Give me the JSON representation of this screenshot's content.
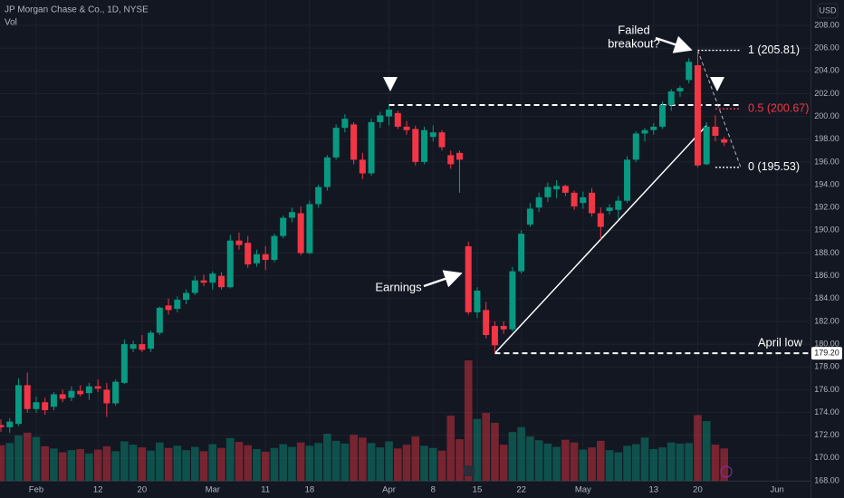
{
  "header": {
    "title": "JP Morgan Chase & Co., 1D, NYSE",
    "volume_label": "Vol",
    "currency": "USD"
  },
  "chart_data": {
    "type": "candlestick",
    "categories": [
      null,
      null,
      null,
      null,
      "Feb",
      null,
      null,
      null,
      null,
      null,
      null,
      "12",
      null,
      null,
      null,
      null,
      "20",
      null,
      null,
      null,
      null,
      null,
      null,
      null,
      "Mar",
      null,
      null,
      null,
      null,
      null,
      "11",
      null,
      null,
      null,
      null,
      "18",
      null,
      null,
      null,
      null,
      null,
      null,
      null,
      null,
      "Apr",
      null,
      null,
      null,
      null,
      "8",
      null,
      null,
      null,
      null,
      "15",
      null,
      null,
      null,
      null,
      "22",
      null,
      null,
      null,
      null,
      null,
      null,
      "May",
      null,
      null,
      null,
      null,
      null,
      null,
      null,
      "13",
      null,
      null,
      null,
      null,
      "20",
      null,
      null,
      null,
      null,
      null,
      null,
      null,
      null,
      "Jun"
    ],
    "open": [
      172.9,
      172.7,
      173.0,
      176.4,
      174.3,
      174.9,
      174.5,
      175.6,
      175.3,
      175.9,
      175.7,
      176.3,
      176.0,
      174.8,
      176.6,
      179.6,
      180.0,
      179.6,
      181.0,
      183.4,
      183.1,
      183.9,
      184.5,
      185.6,
      185.4,
      186.0,
      185.0,
      189.1,
      188.9,
      187.1,
      187.9,
      187.4,
      189.5,
      191.1,
      191.5,
      188.0,
      192.3,
      193.8,
      196.4,
      199.0,
      199.3,
      196.2,
      195.0,
      199.5,
      200.0,
      200.3,
      199.1,
      198.9,
      196.0,
      198.2,
      198.6,
      196.6,
      196.8,
      188.6,
      182.8,
      183.0,
      181.6,
      181.6,
      181.3,
      186.4,
      190.5,
      192.0,
      192.9,
      193.6,
      193.9,
      193.3,
      192.4,
      193.3,
      191.5,
      191.7,
      191.8,
      192.6,
      196.2,
      198.5,
      198.8,
      199.1,
      201.0,
      202.2,
      203.2,
      204.5,
      195.8,
      199.1,
      198.0,
      null,
      null,
      null,
      null,
      null,
      null
    ],
    "high": [
      173.4,
      173.5,
      177.0,
      177.5,
      175.4,
      175.3,
      175.8,
      176.0,
      176.3,
      176.4,
      176.6,
      176.9,
      176.6,
      176.9,
      180.4,
      180.3,
      180.8,
      181.2,
      183.3,
      184.0,
      184.2,
      184.8,
      186.0,
      186.1,
      186.4,
      186.3,
      189.6,
      189.8,
      189.5,
      188.3,
      188.6,
      189.7,
      191.3,
      192.0,
      192.1,
      192.6,
      194.0,
      196.6,
      199.3,
      200.2,
      199.5,
      196.8,
      199.8,
      200.4,
      201.0,
      200.5,
      199.6,
      199.2,
      199.1,
      199.2,
      198.8,
      197.0,
      197.0,
      189.0,
      185.0,
      183.7,
      182.0,
      182.0,
      186.8,
      190.0,
      192.4,
      193.3,
      194.2,
      194.4,
      194.0,
      193.5,
      193.4,
      193.7,
      192.0,
      192.3,
      193.0,
      196.5,
      198.7,
      199.0,
      199.4,
      201.3,
      202.4,
      202.7,
      205.1,
      205.81,
      199.5,
      200.1,
      198.2,
      null,
      null,
      null,
      null,
      null,
      null
    ],
    "low": [
      172.3,
      172.2,
      172.8,
      174.0,
      174.0,
      173.8,
      174.2,
      174.9,
      175.0,
      175.4,
      175.1,
      175.8,
      173.6,
      174.6,
      176.5,
      179.3,
      179.3,
      179.3,
      180.8,
      182.6,
      182.8,
      183.5,
      184.3,
      185.1,
      184.8,
      184.8,
      184.9,
      188.3,
      186.7,
      186.8,
      186.5,
      187.2,
      189.3,
      190.7,
      187.8,
      187.9,
      192.0,
      193.5,
      196.2,
      198.6,
      195.8,
      194.5,
      194.8,
      199.0,
      199.2,
      198.9,
      198.4,
      195.7,
      195.8,
      197.8,
      197.0,
      195.4,
      193.3,
      182.6,
      182.3,
      180.5,
      179.2,
      180.9,
      181.1,
      186.2,
      190.3,
      191.6,
      192.5,
      192.8,
      193.0,
      191.8,
      191.9,
      191.2,
      189.2,
      191.4,
      191.0,
      192.4,
      196.0,
      197.8,
      198.4,
      198.9,
      200.5,
      201.7,
      202.9,
      195.53,
      195.7,
      197.8,
      197.4,
      null,
      null,
      null,
      null,
      null,
      null
    ],
    "close": [
      172.7,
      173.2,
      176.4,
      174.3,
      174.9,
      174.2,
      175.6,
      175.2,
      175.9,
      175.6,
      176.3,
      176.1,
      174.8,
      176.7,
      180.0,
      180.0,
      179.5,
      181.0,
      183.2,
      183.0,
      183.9,
      184.5,
      185.6,
      185.4,
      186.2,
      185.0,
      189.1,
      188.7,
      187.0,
      187.9,
      187.4,
      189.5,
      191.1,
      191.6,
      188.0,
      192.3,
      193.8,
      196.4,
      199.0,
      199.8,
      196.2,
      195.0,
      199.5,
      200.1,
      200.6,
      199.1,
      198.8,
      196.0,
      198.8,
      198.6,
      197.3,
      195.8,
      196.2,
      182.8,
      184.7,
      180.8,
      179.9,
      181.3,
      186.4,
      189.7,
      191.9,
      192.9,
      193.8,
      193.9,
      193.3,
      192.1,
      192.9,
      191.5,
      190.3,
      192.0,
      192.6,
      196.2,
      198.5,
      198.8,
      199.1,
      201.0,
      202.2,
      202.5,
      204.8,
      195.7,
      199.1,
      198.3,
      197.7,
      null,
      null,
      null,
      null,
      null,
      null
    ],
    "volume": [
      6.5,
      6.9,
      8.3,
      8.8,
      8.0,
      6.3,
      5.9,
      5.2,
      5.6,
      5.8,
      5.0,
      5.7,
      6.3,
      5.4,
      7.2,
      6.6,
      6.1,
      5.5,
      7.0,
      6.0,
      6.4,
      5.6,
      6.2,
      5.4,
      6.7,
      6.0,
      7.8,
      7.1,
      6.5,
      5.8,
      5.3,
      6.0,
      6.7,
      6.2,
      7.0,
      6.4,
      6.9,
      8.6,
      7.3,
      6.8,
      8.4,
      7.9,
      6.9,
      6.1,
      7.2,
      5.9,
      6.6,
      8.1,
      6.4,
      6.0,
      5.5,
      11.9,
      7.6,
      22.0,
      11.3,
      12.4,
      10.6,
      6.6,
      8.9,
      9.8,
      8.1,
      7.4,
      6.8,
      6.2,
      7.5,
      7.0,
      5.7,
      6.1,
      7.3,
      5.6,
      5.2,
      6.4,
      6.7,
      7.9,
      5.8,
      6.1,
      7.0,
      6.8,
      6.9,
      12.0,
      10.9,
      6.6,
      5.9,
      null,
      null,
      null,
      null,
      null,
      null
    ],
    "up_color": "#089981",
    "down_color": "#f23645",
    "ylim": [
      168,
      208
    ],
    "yticks": [
      {
        "value": 168,
        "label": "168.00"
      },
      {
        "value": 170,
        "label": "170.00"
      },
      {
        "value": 172,
        "label": "172.00"
      },
      {
        "value": 174,
        "label": "174.00"
      },
      {
        "value": 176,
        "label": "176.00"
      },
      {
        "value": 178,
        "label": "178.00"
      },
      {
        "value": 180,
        "label": "180.00"
      },
      {
        "value": 182,
        "label": "182.00"
      },
      {
        "value": 184,
        "label": "184.00"
      },
      {
        "value": 186,
        "label": "186.00"
      },
      {
        "value": 188,
        "label": "188.00"
      },
      {
        "value": 190,
        "label": "190.00"
      },
      {
        "value": 192,
        "label": "192.00"
      },
      {
        "value": 194,
        "label": "194.00"
      },
      {
        "value": 196,
        "label": "196.00"
      },
      {
        "value": 198,
        "label": "198.00"
      },
      {
        "value": 200,
        "label": "200.00"
      },
      {
        "value": 202,
        "label": "202.00"
      },
      {
        "value": 204,
        "label": "204.00"
      },
      {
        "value": 206,
        "label": "206.00"
      },
      {
        "value": 208,
        "label": "208.00"
      }
    ],
    "grid": true,
    "resistance": 201.0,
    "support": {
      "value": 179.2,
      "label": "April low",
      "price_label": "179.20"
    },
    "trendline": [
      179.2,
      199.2
    ],
    "fib": [
      {
        "value": 205.81,
        "label": "1 (205.81)",
        "color": "#ffffff"
      },
      {
        "value": 200.67,
        "label": "0.5 (200.67)",
        "color": "#f23645"
      },
      {
        "value": 195.53,
        "label": "0 (195.53)",
        "color": "#ffffff"
      }
    ],
    "annotations": {
      "failed_breakout": [
        "Failed",
        "breakout?"
      ],
      "earnings": "Earnings"
    }
  }
}
